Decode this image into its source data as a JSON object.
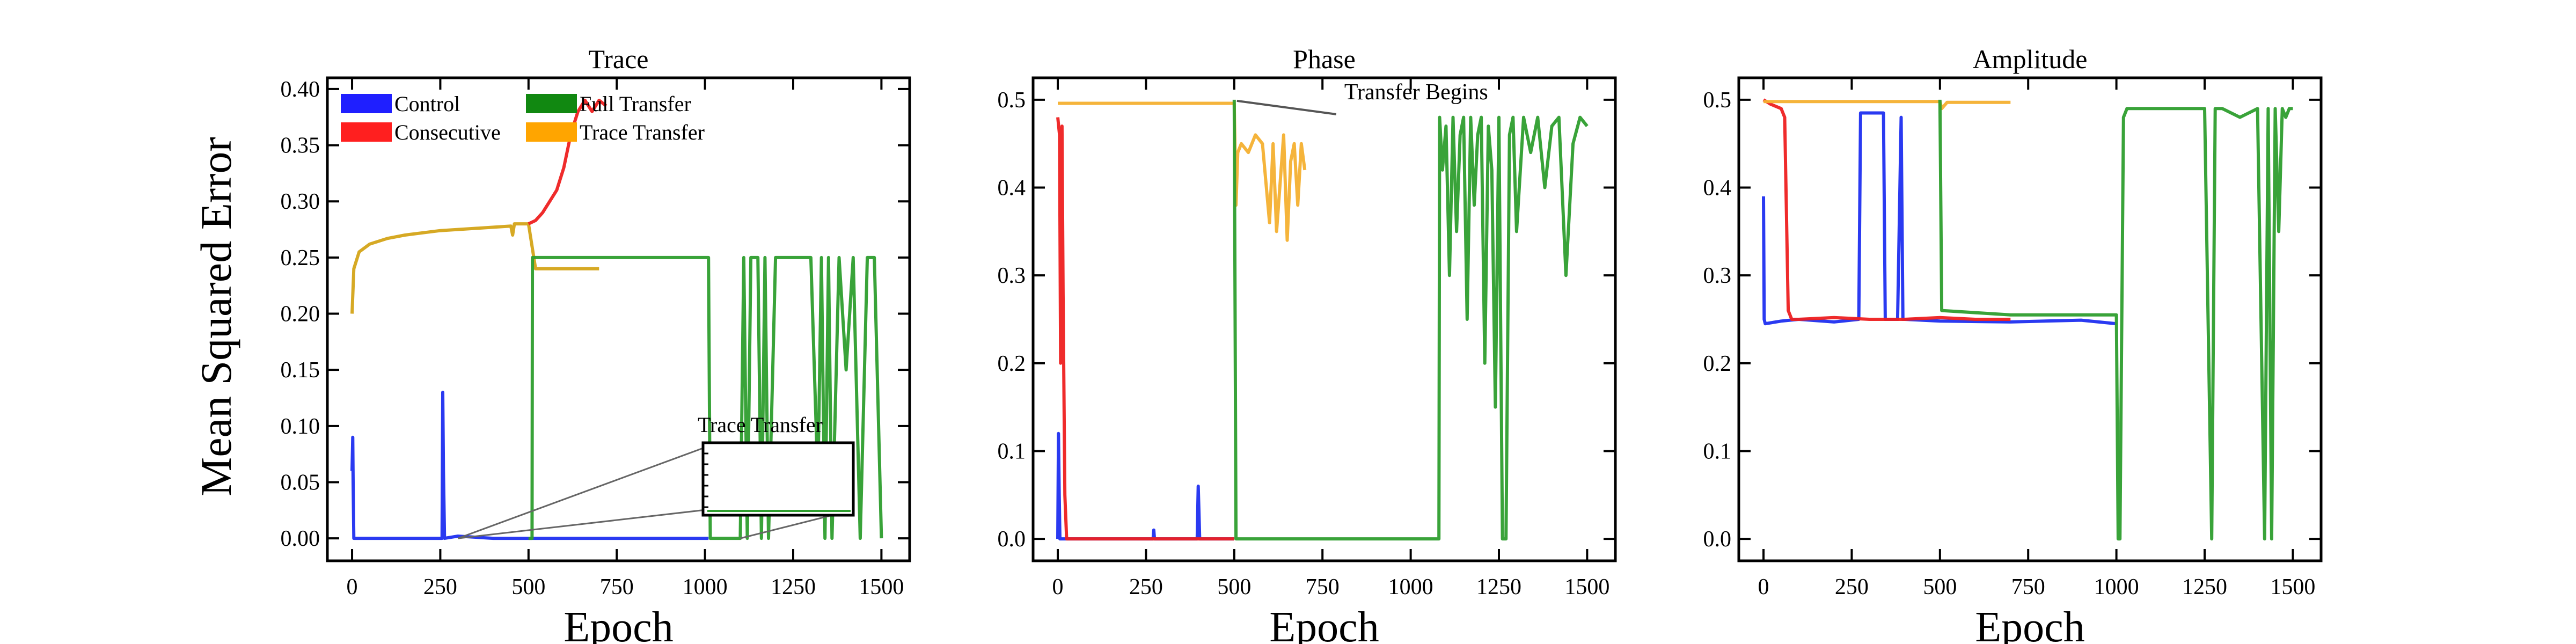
{
  "figure": {
    "ylabel": "Mean Squared Error"
  },
  "legend": [
    {
      "label": "Control",
      "color": "#1f1fff"
    },
    {
      "label": "Consecutive",
      "color": "#ff1f1f"
    },
    {
      "label": "Full Transfer",
      "color": "#118811"
    },
    {
      "label": "Trace Transfer",
      "color": "#ffa500"
    }
  ],
  "colors": {
    "control": "#1f2ff0",
    "consecutive": "#ee2020",
    "full_transfer": "#2e9e2e",
    "trace_transfer": "#f4b030",
    "trace_overlap": "#d4a418"
  },
  "chart_data": [
    {
      "type": "line",
      "title": "Trace",
      "xlabel": "Epoch",
      "ylabel": "Mean Squared Error",
      "xlim": [
        -70,
        1580
      ],
      "ylim": [
        -0.02,
        0.41
      ],
      "xticks": [
        0,
        250,
        500,
        750,
        1000,
        1250,
        1500
      ],
      "yticks": [
        0.0,
        0.05,
        0.1,
        0.15,
        0.2,
        0.25,
        0.3,
        0.35,
        0.4
      ],
      "ytick_labels": [
        "0.00",
        "0.05",
        "0.10",
        "0.15",
        "0.20",
        "0.25",
        "0.30",
        "0.35",
        "0.40"
      ],
      "legend": "upper-left",
      "inset": {
        "label": "Trace Transfer",
        "xlim": [
          1000,
          1100
        ],
        "ylim": [
          0,
          0.01
        ]
      },
      "series": [
        {
          "name": "Control",
          "color": "#1f2ff0",
          "x": [
            0,
            2,
            3,
            5,
            100,
            200,
            255,
            257,
            259,
            262,
            300,
            400,
            500,
            700,
            1000,
            1010
          ],
          "y": [
            0.06,
            0.09,
            0.05,
            0.0,
            0.0,
            0.0,
            0.0,
            0.13,
            0.06,
            0.0,
            0.002,
            0.0,
            0.0,
            0.0,
            0.0,
            0.0
          ]
        },
        {
          "name": "Trace Transfer",
          "color": "#d4a418",
          "x": [
            0,
            5,
            20,
            50,
            100,
            150,
            200,
            250,
            300,
            350,
            400,
            450,
            455,
            460,
            500,
            520,
            550,
            700
          ],
          "y": [
            0.2,
            0.24,
            0.255,
            0.262,
            0.267,
            0.27,
            0.272,
            0.274,
            0.275,
            0.276,
            0.277,
            0.278,
            0.27,
            0.28,
            0.28,
            0.24,
            0.24,
            0.24
          ]
        },
        {
          "name": "Consecutive",
          "color": "#ee2020",
          "x": [
            500,
            520,
            540,
            560,
            580,
            600,
            620,
            640,
            660,
            680,
            700,
            720
          ],
          "y": [
            0.28,
            0.283,
            0.29,
            0.3,
            0.31,
            0.33,
            0.36,
            0.38,
            0.39,
            0.38,
            0.39,
            0.385
          ]
        },
        {
          "name": "Full Transfer",
          "color": "#2e9e2e",
          "x": [
            500,
            510,
            511,
            1000,
            1010,
            1015,
            1100,
            1110,
            1120,
            1130,
            1150,
            1160,
            1170,
            1180,
            1200,
            1250,
            1300,
            1320,
            1330,
            1340,
            1350,
            1360,
            1380,
            1400,
            1420,
            1440,
            1460,
            1480,
            1500
          ],
          "y": [
            0.0,
            0.0,
            0.25,
            0.25,
            0.25,
            0.0,
            0.0,
            0.25,
            0.0,
            0.25,
            0.25,
            0.0,
            0.25,
            0.0,
            0.25,
            0.25,
            0.25,
            0.05,
            0.25,
            0.0,
            0.25,
            0.0,
            0.25,
            0.15,
            0.25,
            0.0,
            0.25,
            0.25,
            0.0
          ]
        }
      ]
    },
    {
      "type": "line",
      "title": "Phase",
      "xlabel": "Epoch",
      "xlim": [
        -70,
        1580
      ],
      "ylim": [
        -0.025,
        0.525
      ],
      "xticks": [
        0,
        250,
        500,
        750,
        1000,
        1250,
        1500
      ],
      "yticks": [
        0.0,
        0.1,
        0.2,
        0.3,
        0.4,
        0.5
      ],
      "ytick_labels": [
        "0.0",
        "0.1",
        "0.2",
        "0.3",
        "0.4",
        "0.5"
      ],
      "annotation": {
        "text": "Transfer Begins",
        "x": 500,
        "y": 0.5
      },
      "series": [
        {
          "name": "Control",
          "color": "#1f2ff0",
          "x": [
            0,
            2,
            4,
            6,
            100,
            200,
            270,
            272,
            274,
            300,
            395,
            398,
            400,
            402,
            500
          ],
          "y": [
            0.0,
            0.12,
            0.05,
            0.0,
            0.0,
            0.0,
            0.0,
            0.01,
            0.0,
            0.0,
            0.0,
            0.06,
            0.03,
            0.0,
            0.0
          ]
        },
        {
          "name": "Consecutive",
          "color": "#ee2020",
          "x": [
            0,
            5,
            8,
            12,
            15,
            20,
            25,
            100,
            300,
            500
          ],
          "y": [
            0.48,
            0.46,
            0.2,
            0.47,
            0.28,
            0.05,
            0.0,
            0.0,
            0.0,
            0.0
          ]
        },
        {
          "name": "Trace Transfer",
          "color": "#f4b030",
          "x": [
            0,
            500,
            505,
            510,
            520,
            540,
            560,
            580,
            600,
            610,
            620,
            640,
            650,
            660,
            670,
            680,
            690,
            700
          ],
          "y": [
            0.496,
            0.496,
            0.38,
            0.44,
            0.45,
            0.44,
            0.46,
            0.45,
            0.36,
            0.45,
            0.35,
            0.46,
            0.34,
            0.43,
            0.45,
            0.38,
            0.45,
            0.42
          ]
        },
        {
          "name": "Full Transfer",
          "color": "#2e9e2e",
          "x": [
            500,
            505,
            1000,
            1080,
            1082,
            1090,
            1100,
            1110,
            1120,
            1130,
            1140,
            1150,
            1160,
            1170,
            1180,
            1190,
            1200,
            1210,
            1220,
            1230,
            1240,
            1250,
            1260,
            1270,
            1280,
            1290,
            1300,
            1320,
            1340,
            1360,
            1380,
            1400,
            1420,
            1440,
            1460,
            1480,
            1500
          ],
          "y": [
            0.5,
            0.0,
            0.0,
            0.0,
            0.48,
            0.42,
            0.47,
            0.3,
            0.48,
            0.35,
            0.46,
            0.48,
            0.25,
            0.48,
            0.38,
            0.46,
            0.48,
            0.2,
            0.47,
            0.42,
            0.15,
            0.48,
            0.0,
            0.0,
            0.46,
            0.48,
            0.35,
            0.48,
            0.44,
            0.48,
            0.4,
            0.47,
            0.48,
            0.3,
            0.45,
            0.48,
            0.47
          ]
        }
      ]
    },
    {
      "type": "line",
      "title": "Amplitude",
      "xlabel": "Epoch",
      "xlim": [
        -70,
        1580
      ],
      "ylim": [
        -0.025,
        0.525
      ],
      "xticks": [
        0,
        250,
        500,
        750,
        1000,
        1250,
        1500
      ],
      "yticks": [
        0.0,
        0.1,
        0.2,
        0.3,
        0.4,
        0.5
      ],
      "ytick_labels": [
        "0.0",
        "0.1",
        "0.2",
        "0.3",
        "0.4",
        "0.5"
      ],
      "series": [
        {
          "name": "Control",
          "color": "#1f2ff0",
          "x": [
            0,
            2,
            5,
            50,
            100,
            200,
            270,
            275,
            340,
            345,
            380,
            390,
            395,
            400,
            500,
            700,
            900,
            1000
          ],
          "y": [
            0.39,
            0.25,
            0.245,
            0.248,
            0.25,
            0.247,
            0.25,
            0.485,
            0.485,
            0.25,
            0.25,
            0.48,
            0.25,
            0.25,
            0.248,
            0.247,
            0.249,
            0.245
          ]
        },
        {
          "name": "Consecutive",
          "color": "#ee2020",
          "x": [
            0,
            20,
            50,
            60,
            70,
            80,
            100,
            200,
            300,
            400,
            500,
            600,
            700
          ],
          "y": [
            0.5,
            0.495,
            0.49,
            0.48,
            0.26,
            0.25,
            0.25,
            0.252,
            0.25,
            0.25,
            0.252,
            0.25,
            0.25
          ]
        },
        {
          "name": "Trace Transfer",
          "color": "#f4b030",
          "x": [
            0,
            500,
            505,
            520,
            700
          ],
          "y": [
            0.498,
            0.498,
            0.49,
            0.497,
            0.497
          ]
        },
        {
          "name": "Full Transfer",
          "color": "#2e9e2e",
          "x": [
            500,
            505,
            700,
            1000,
            1005,
            1010,
            1020,
            1030,
            1050,
            1100,
            1150,
            1200,
            1250,
            1270,
            1280,
            1290,
            1300,
            1350,
            1400,
            1420,
            1430,
            1440,
            1450,
            1460,
            1470,
            1480,
            1490,
            1500
          ],
          "y": [
            0.5,
            0.26,
            0.255,
            0.255,
            0.0,
            0.0,
            0.48,
            0.49,
            0.49,
            0.49,
            0.49,
            0.49,
            0.49,
            0.0,
            0.49,
            0.49,
            0.49,
            0.48,
            0.49,
            0.0,
            0.49,
            0.0,
            0.49,
            0.35,
            0.49,
            0.48,
            0.49,
            0.49
          ]
        }
      ]
    }
  ]
}
